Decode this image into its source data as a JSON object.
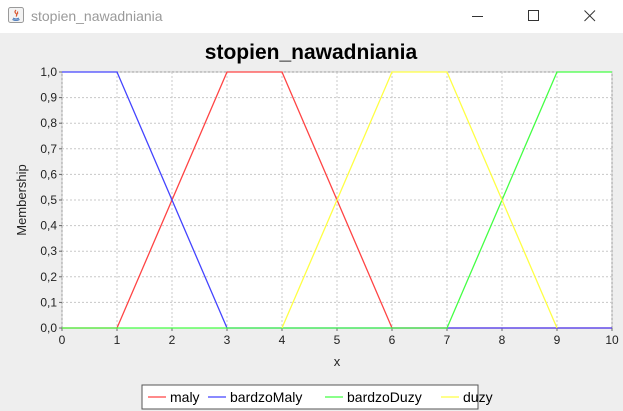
{
  "window": {
    "title": "stopien_nawadniania",
    "icon": "java-icon"
  },
  "colors": {
    "maly": "#ff4444",
    "bardzoMaly": "#4444ff",
    "bardzoDuzy": "#44ff44",
    "duzy": "#ffff44",
    "grid": "#c8c8c8"
  },
  "chart_data": {
    "type": "line",
    "title": "stopien_nawadniania",
    "xlabel": "x",
    "ylabel": "Membership",
    "xlim": [
      0,
      10
    ],
    "ylim": [
      0,
      1
    ],
    "x_ticks": [
      "0",
      "1",
      "2",
      "3",
      "4",
      "5",
      "6",
      "7",
      "8",
      "9",
      "10"
    ],
    "y_ticks": [
      "0,0",
      "0,1",
      "0,2",
      "0,3",
      "0,4",
      "0,5",
      "0,6",
      "0,7",
      "0,8",
      "0,9",
      "1,0"
    ],
    "grid": true,
    "legend_position": "bottom",
    "series": [
      {
        "name": "maly",
        "color_key": "maly",
        "points": [
          [
            0,
            0
          ],
          [
            1,
            0
          ],
          [
            3,
            1
          ],
          [
            4,
            1
          ],
          [
            6,
            0
          ],
          [
            10,
            0
          ]
        ]
      },
      {
        "name": "bardzoMaly",
        "color_key": "bardzoMaly",
        "points": [
          [
            0,
            1
          ],
          [
            1,
            1
          ],
          [
            3,
            0
          ],
          [
            10,
            0
          ]
        ]
      },
      {
        "name": "bardzoDuzy",
        "color_key": "bardzoDuzy",
        "points": [
          [
            0,
            0
          ],
          [
            7,
            0
          ],
          [
            9,
            1
          ],
          [
            10,
            1
          ]
        ]
      },
      {
        "name": "duzy",
        "color_key": "duzy",
        "points": [
          [
            4,
            0
          ],
          [
            6,
            1
          ],
          [
            7,
            1
          ],
          [
            9,
            0
          ]
        ]
      }
    ]
  }
}
